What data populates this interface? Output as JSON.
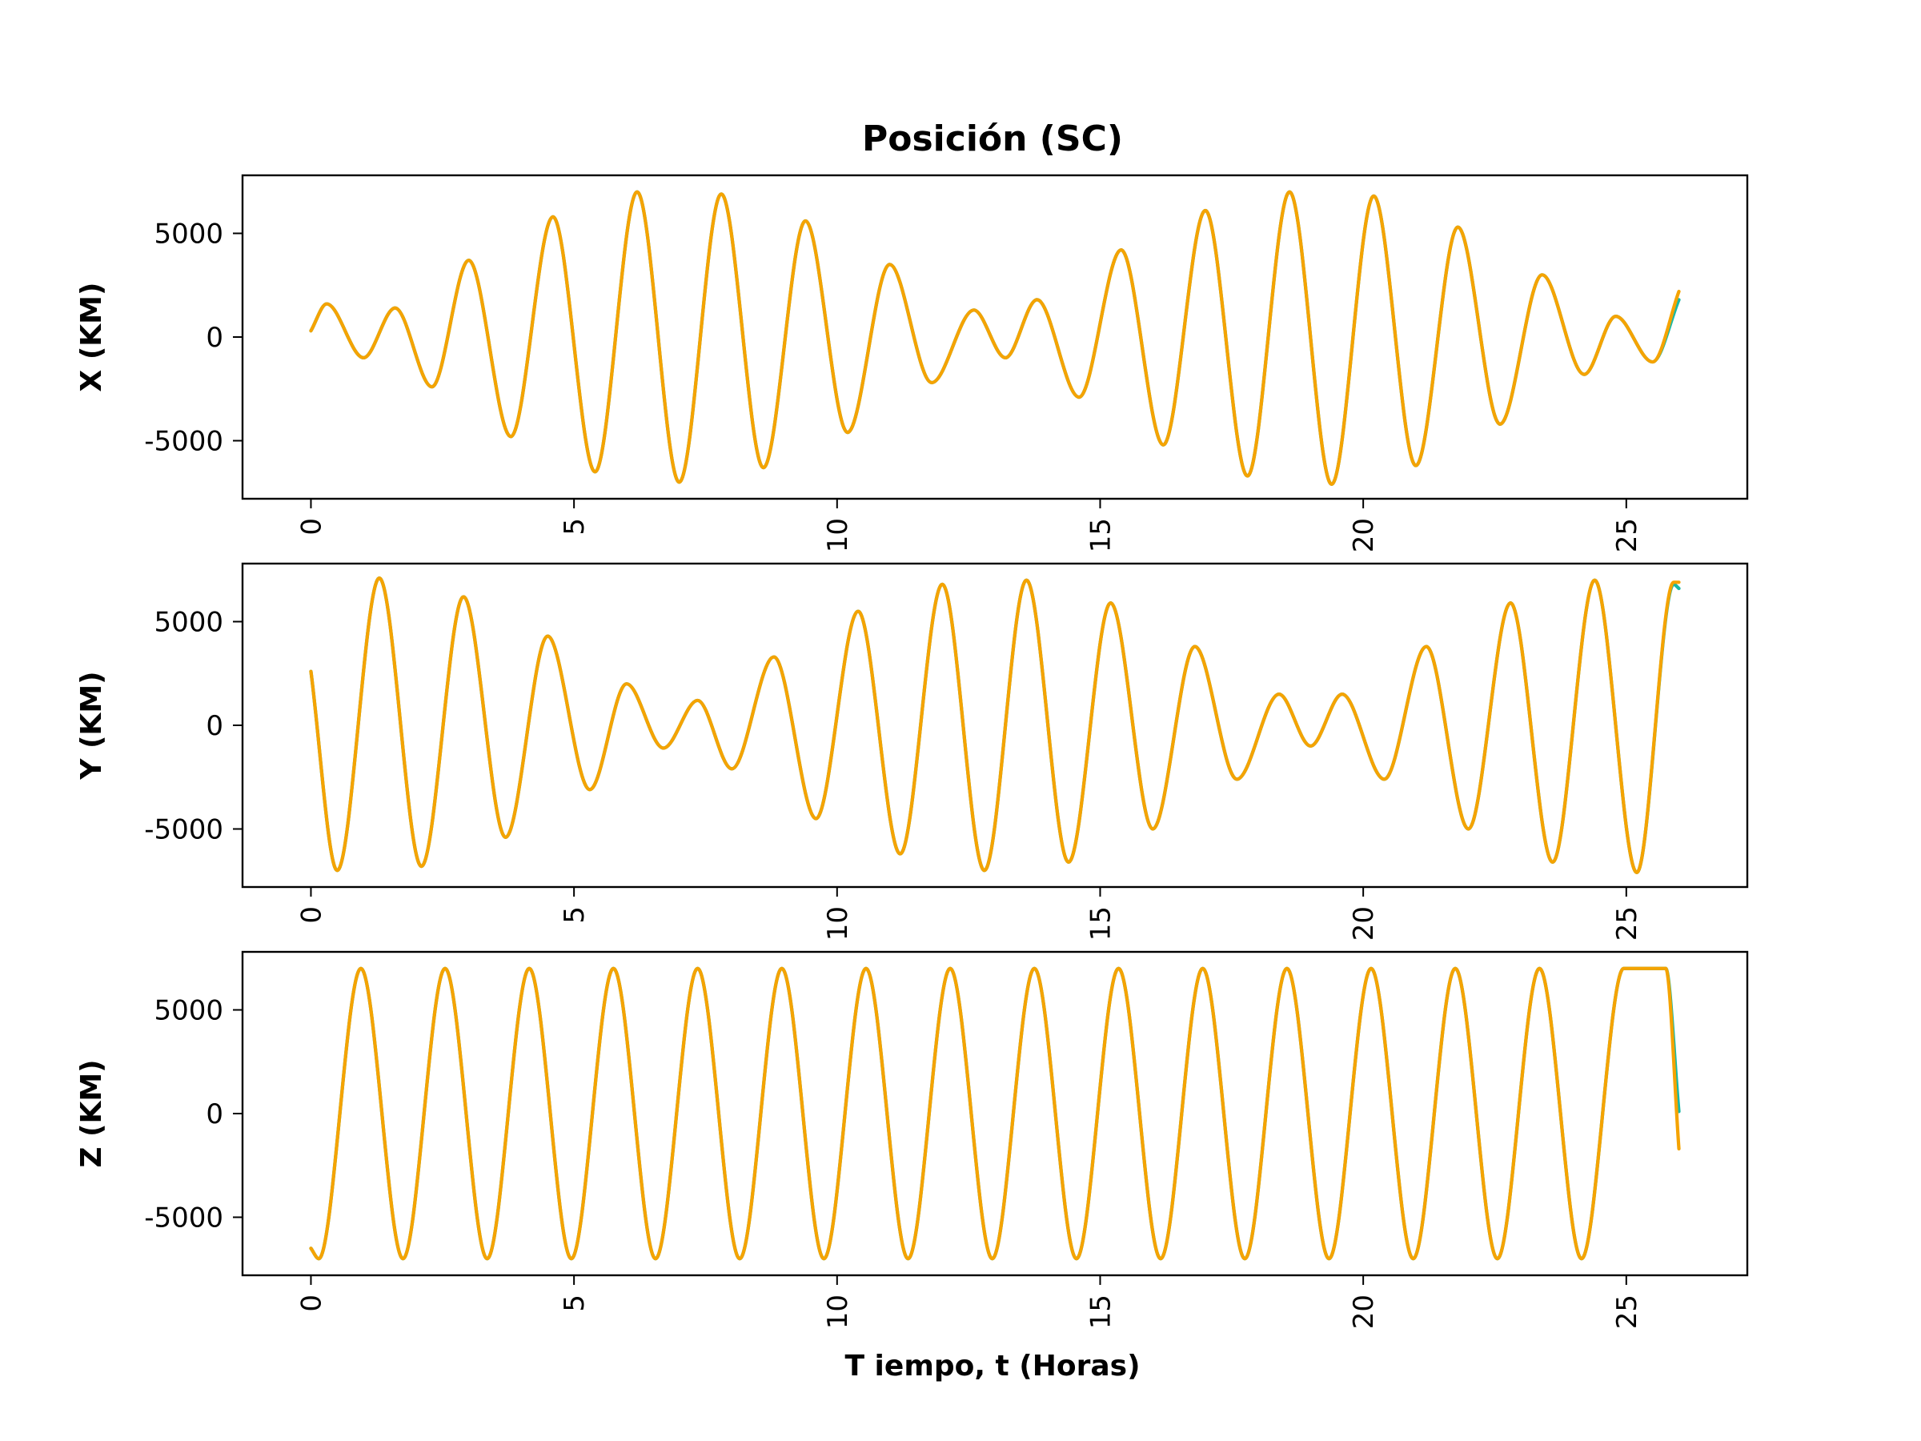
{
  "chart_data": {
    "type": "line",
    "title": "Posición (SC)",
    "xlabel": "T iempo, t (Horas)",
    "xlim": [
      -1.3,
      27.3
    ],
    "xticks": [
      0,
      5,
      10,
      15,
      20,
      25
    ],
    "xtick_rotation_deg": 90,
    "grid": false,
    "legend": "none",
    "colors": [
      "#17b8a6",
      "#f5a300"
    ],
    "subplots": [
      {
        "ylabel": "X (KM)",
        "ylim": [
          -7800,
          7800
        ],
        "yticks": [
          5000,
          0,
          -5000
        ],
        "ytick_labels": [
          "5000",
          "0",
          "-5000"
        ],
        "series": [
          {
            "color": "#17b8a6",
            "x": [
              0,
              0.3,
              1.0,
              1.6,
              2.3,
              3.0,
              3.8,
              4.6,
              5.4,
              6.2,
              7.0,
              7.8,
              8.6,
              9.4,
              10.2,
              11.0,
              11.8,
              12.6,
              13.2,
              13.8,
              14.6,
              15.4,
              16.2,
              17.0,
              17.8,
              18.6,
              19.4,
              20.2,
              21.0,
              21.8,
              22.6,
              23.4,
              24.2,
              24.8,
              25.5,
              26.0
            ],
            "y": [
              300,
              1600,
              -1000,
              1400,
              -2400,
              3700,
              -4800,
              5800,
              -6500,
              7000,
              -7000,
              6900,
              -6300,
              5600,
              -4600,
              3500,
              -2200,
              1300,
              -1000,
              1800,
              -2900,
              4200,
              -5200,
              6100,
              -6700,
              7000,
              -7100,
              6800,
              -6200,
              5300,
              -4200,
              3000,
              -1800,
              1000,
              -1200,
              1800
            ]
          },
          {
            "color": "#f5a300",
            "x": [
              0,
              0.3,
              1.0,
              1.6,
              2.3,
              3.0,
              3.8,
              4.6,
              5.4,
              6.2,
              7.0,
              7.8,
              8.6,
              9.4,
              10.2,
              11.0,
              11.8,
              12.6,
              13.2,
              13.8,
              14.6,
              15.4,
              16.2,
              17.0,
              17.8,
              18.6,
              19.4,
              20.2,
              21.0,
              21.8,
              22.6,
              23.4,
              24.2,
              24.8,
              25.5,
              26.0
            ],
            "y": [
              300,
              1600,
              -1000,
              1400,
              -2400,
              3700,
              -4800,
              5800,
              -6500,
              7000,
              -7000,
              6900,
              -6300,
              5600,
              -4600,
              3500,
              -2200,
              1300,
              -1000,
              1800,
              -2900,
              4200,
              -5200,
              6100,
              -6700,
              7000,
              -7100,
              6800,
              -6200,
              5300,
              -4200,
              3000,
              -1800,
              1000,
              -1200,
              2200
            ]
          }
        ]
      },
      {
        "ylabel": "Y (KM)",
        "ylim": [
          -7800,
          7800
        ],
        "yticks": [
          5000,
          0,
          -5000
        ],
        "ytick_labels": [
          "5000",
          "0",
          "-5000"
        ],
        "series": [
          {
            "color": "#17b8a6",
            "x": [
              0,
              0.5,
              1.3,
              2.1,
              2.9,
              3.7,
              4.5,
              5.3,
              6.0,
              6.7,
              7.35,
              8.0,
              8.8,
              9.6,
              10.4,
              11.2,
              12.0,
              12.8,
              13.6,
              14.4,
              15.2,
              16.0,
              16.8,
              17.6,
              18.4,
              19.0,
              19.6,
              20.4,
              21.2,
              22.0,
              22.8,
              23.6,
              24.4,
              25.2,
              25.9,
              26.0
            ],
            "y": [
              2600,
              -7000,
              7100,
              -6800,
              6200,
              -5400,
              4300,
              -3100,
              2000,
              -1100,
              1200,
              -2100,
              3300,
              -4500,
              5500,
              -6200,
              6800,
              -7000,
              7000,
              -6600,
              5900,
              -5000,
              3800,
              -2600,
              1500,
              -1000,
              1500,
              -2600,
              3800,
              -5000,
              5900,
              -6600,
              7000,
              -7100,
              6800,
              6600
            ]
          },
          {
            "color": "#f5a300",
            "x": [
              0,
              0.5,
              1.3,
              2.1,
              2.9,
              3.7,
              4.5,
              5.3,
              6.0,
              6.7,
              7.35,
              8.0,
              8.8,
              9.6,
              10.4,
              11.2,
              12.0,
              12.8,
              13.6,
              14.4,
              15.2,
              16.0,
              16.8,
              17.6,
              18.4,
              19.0,
              19.6,
              20.4,
              21.2,
              22.0,
              22.8,
              23.6,
              24.4,
              25.2,
              25.9,
              26.0
            ],
            "y": [
              2600,
              -7000,
              7100,
              -6800,
              6200,
              -5400,
              4300,
              -3100,
              2000,
              -1100,
              1200,
              -2100,
              3300,
              -4500,
              5500,
              -6200,
              6800,
              -7000,
              7000,
              -6600,
              5900,
              -5000,
              3800,
              -2600,
              1500,
              -1000,
              1500,
              -2600,
              3800,
              -5000,
              5900,
              -6600,
              7000,
              -7100,
              6900,
              6900
            ]
          }
        ]
      },
      {
        "ylabel": "Z (KM)",
        "ylim": [
          -7800,
          7800
        ],
        "yticks": [
          5000,
          0,
          -5000
        ],
        "ytick_labels": [
          "5000",
          "0",
          "-5000"
        ],
        "series": [
          {
            "color": "#17b8a6",
            "x": [
              0,
              0.15,
              0.95,
              1.75,
              2.55,
              3.35,
              4.15,
              4.95,
              5.75,
              6.55,
              7.35,
              8.15,
              8.95,
              9.75,
              10.55,
              11.35,
              12.15,
              12.95,
              13.75,
              14.55,
              15.35,
              16.15,
              16.95,
              17.75,
              18.55,
              19.35,
              20.15,
              20.95,
              21.75,
              22.55,
              23.35,
              24.15,
              24.95,
              25.75,
              26.0
            ],
            "y": [
              -6500,
              -7000,
              7000,
              -7000,
              7000,
              -7000,
              7000,
              -7000,
              7000,
              -7000,
              7000,
              -7000,
              7000,
              -7000,
              7000,
              -7000,
              7000,
              -7000,
              7000,
              -7000,
              7000,
              -7000,
              7000,
              -7000,
              7000,
              -7000,
              7000,
              -7000,
              7000,
              -7000,
              7000,
              -7000,
              7000,
              7000,
              100
            ]
          },
          {
            "color": "#f5a300",
            "x": [
              0,
              0.15,
              0.95,
              1.75,
              2.55,
              3.35,
              4.15,
              4.95,
              5.75,
              6.55,
              7.35,
              8.15,
              8.95,
              9.75,
              10.55,
              11.35,
              12.15,
              12.95,
              13.75,
              14.55,
              15.35,
              16.15,
              16.95,
              17.75,
              18.55,
              19.35,
              20.15,
              20.95,
              21.75,
              22.55,
              23.35,
              24.15,
              24.95,
              25.75,
              26.0
            ],
            "y": [
              -6500,
              -7000,
              7000,
              -7000,
              7000,
              -7000,
              7000,
              -7000,
              7000,
              -7000,
              7000,
              -7000,
              7000,
              -7000,
              7000,
              -7000,
              7000,
              -7000,
              7000,
              -7000,
              7000,
              -7000,
              7000,
              -7000,
              7000,
              -7000,
              7000,
              -7000,
              7000,
              -7000,
              7000,
              -7000,
              7000,
              7000,
              -1700
            ]
          }
        ]
      }
    ]
  }
}
